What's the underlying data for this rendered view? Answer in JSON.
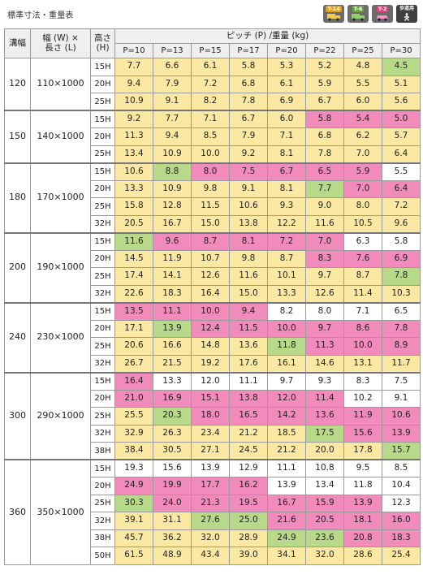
{
  "title": "標準寸法・重量表",
  "badges": [
    {
      "label": "T-14",
      "icon": "truck-icon"
    },
    {
      "label": "T-6",
      "icon": "truck-icon"
    },
    {
      "label": "T-2",
      "icon": "car-icon"
    },
    {
      "label": "歩道用",
      "icon": "pedestrian-icon"
    }
  ],
  "header": {
    "col_width": "溝幅",
    "col_size": "幅 (W) ×\n長さ (L)",
    "col_height": "高さ\n(H)",
    "pitch_weight": "ピッチ (P) /重量 (kg)",
    "pitches": [
      "P=10",
      "P=13",
      "P=15",
      "P=17",
      "P=20",
      "P=22",
      "P=25",
      "P=30"
    ]
  },
  "colors": {
    "yellow": "#fbe8a3",
    "pink": "#f08bbb",
    "green": "#b9d98a",
    "white": "#ffffff"
  },
  "groups": [
    {
      "width": "120",
      "size": "110×1000",
      "rows": [
        {
          "h": "15H",
          "v": [
            "7.7",
            "6.6",
            "6.1",
            "5.8",
            "5.3",
            "5.2",
            "4.8",
            "4.5"
          ],
          "c": "yyyyyyyg"
        },
        {
          "h": "20H",
          "v": [
            "9.4",
            "7.9",
            "7.2",
            "6.8",
            "6.1",
            "5.9",
            "5.5",
            "5.1"
          ],
          "c": "yyyyyyyy"
        },
        {
          "h": "25H",
          "v": [
            "10.9",
            "9.1",
            "8.2",
            "7.8",
            "6.9",
            "6.7",
            "6.0",
            "5.6"
          ],
          "c": "yyyyyyyy"
        }
      ]
    },
    {
      "width": "150",
      "size": "140×1000",
      "rows": [
        {
          "h": "15H",
          "v": [
            "9.2",
            "7.7",
            "7.1",
            "6.7",
            "6.0",
            "5.8",
            "5.4",
            "5.0"
          ],
          "c": "yyyyyppp"
        },
        {
          "h": "20H",
          "v": [
            "11.3",
            "9.4",
            "8.5",
            "7.9",
            "7.1",
            "6.8",
            "6.2",
            "5.7"
          ],
          "c": "yyyyyyyy"
        },
        {
          "h": "25H",
          "v": [
            "13.4",
            "10.9",
            "10.0",
            "9.2",
            "8.1",
            "7.8",
            "7.0",
            "6.4"
          ],
          "c": "yyyyyyyy"
        }
      ]
    },
    {
      "width": "180",
      "size": "170×1000",
      "rows": [
        {
          "h": "15H",
          "v": [
            "10.6",
            "8.8",
            "8.0",
            "7.5",
            "6.7",
            "6.5",
            "5.9",
            "5.5"
          ],
          "c": "ygpppppw"
        },
        {
          "h": "20H",
          "v": [
            "13.3",
            "10.9",
            "9.8",
            "9.1",
            "8.1",
            "7.7",
            "7.0",
            "6.4"
          ],
          "c": "yyyyygpp"
        },
        {
          "h": "25H",
          "v": [
            "15.8",
            "12.8",
            "11.5",
            "10.6",
            "9.3",
            "9.0",
            "8.0",
            "7.2"
          ],
          "c": "yyyyyyyy"
        },
        {
          "h": "32H",
          "v": [
            "20.5",
            "16.7",
            "15.0",
            "13.8",
            "12.2",
            "11.6",
            "10.5",
            "9.6"
          ],
          "c": "yyyyyyyy"
        }
      ]
    },
    {
      "width": "200",
      "size": "190×1000",
      "rows": [
        {
          "h": "15H",
          "v": [
            "11.6",
            "9.6",
            "8.7",
            "8.1",
            "7.2",
            "7.0",
            "6.3",
            "5.8"
          ],
          "c": "gpppppww"
        },
        {
          "h": "20H",
          "v": [
            "14.5",
            "11.9",
            "10.7",
            "9.8",
            "8.7",
            "8.3",
            "7.6",
            "6.9"
          ],
          "c": "yyyyyppp"
        },
        {
          "h": "25H",
          "v": [
            "17.4",
            "14.1",
            "12.6",
            "11.6",
            "10.1",
            "9.7",
            "8.7",
            "7.8"
          ],
          "c": "yyyyyyyg"
        },
        {
          "h": "32H",
          "v": [
            "22.6",
            "18.3",
            "16.4",
            "15.0",
            "13.3",
            "12.6",
            "11.4",
            "10.3"
          ],
          "c": "yyyyyyyy"
        }
      ]
    },
    {
      "width": "240",
      "size": "230×1000",
      "rows": [
        {
          "h": "15H",
          "v": [
            "13.5",
            "11.1",
            "10.0",
            "9.4",
            "8.2",
            "8.0",
            "7.1",
            "6.5"
          ],
          "c": "ppppwwww"
        },
        {
          "h": "20H",
          "v": [
            "17.1",
            "13.9",
            "12.4",
            "11.5",
            "10.0",
            "9.7",
            "8.6",
            "7.8"
          ],
          "c": "ygpppppp"
        },
        {
          "h": "25H",
          "v": [
            "20.6",
            "16.6",
            "14.8",
            "13.6",
            "11.8",
            "11.3",
            "10.0",
            "8.9"
          ],
          "c": "yyyygppp"
        },
        {
          "h": "32H",
          "v": [
            "26.7",
            "21.5",
            "19.2",
            "17.6",
            "16.1",
            "14.6",
            "13.1",
            "11.7"
          ],
          "c": "yyyyyyyy"
        }
      ]
    },
    {
      "width": "300",
      "size": "290×1000",
      "rows": [
        {
          "h": "15H",
          "v": [
            "16.4",
            "13.3",
            "12.0",
            "11.1",
            "9.7",
            "9.3",
            "8.3",
            "7.5"
          ],
          "c": "pwwwwwww"
        },
        {
          "h": "20H",
          "v": [
            "21.0",
            "16.9",
            "15.1",
            "13.8",
            "12.0",
            "11.4",
            "10.2",
            "9.1"
          ],
          "c": "ppppppww"
        },
        {
          "h": "25H",
          "v": [
            "25.5",
            "20.3",
            "18.0",
            "16.5",
            "14.2",
            "13.6",
            "11.9",
            "10.6"
          ],
          "c": "ygpppppp"
        },
        {
          "h": "32H",
          "v": [
            "32.9",
            "26.3",
            "23.4",
            "21.2",
            "18.5",
            "17.5",
            "15.6",
            "13.9"
          ],
          "c": "yyyyygpp"
        },
        {
          "h": "38H",
          "v": [
            "38.4",
            "30.5",
            "27.1",
            "24.5",
            "21.2",
            "20.0",
            "17.8",
            "15.7"
          ],
          "c": "yyyyyyyg"
        }
      ]
    },
    {
      "width": "360",
      "size": "350×1000",
      "rows": [
        {
          "h": "15H",
          "v": [
            "19.3",
            "15.6",
            "13.9",
            "12.9",
            "11.1",
            "10.8",
            "9.5",
            "8.5"
          ],
          "c": "wwwwwwww"
        },
        {
          "h": "20H",
          "v": [
            "24.9",
            "19.9",
            "17.7",
            "16.2",
            "13.9",
            "13.4",
            "11.8",
            "10.4"
          ],
          "c": "ppppwwww"
        },
        {
          "h": "25H",
          "v": [
            "30.3",
            "24.0",
            "21.3",
            "19.5",
            "16.7",
            "15.9",
            "13.9",
            "12.3"
          ],
          "c": "gppppppw"
        },
        {
          "h": "32H",
          "v": [
            "39.1",
            "31.1",
            "27.6",
            "25.0",
            "21.6",
            "20.5",
            "18.1",
            "16.0"
          ],
          "c": "yyggpppp"
        },
        {
          "h": "38H",
          "v": [
            "45.7",
            "36.2",
            "32.0",
            "28.9",
            "24.9",
            "23.6",
            "20.8",
            "18.3"
          ],
          "c": "yyyyggpp"
        },
        {
          "h": "50H",
          "v": [
            "61.5",
            "48.9",
            "43.4",
            "39.0",
            "34.1",
            "32.0",
            "28.6",
            "25.4"
          ],
          "c": "yyyyyyyy"
        }
      ]
    }
  ]
}
